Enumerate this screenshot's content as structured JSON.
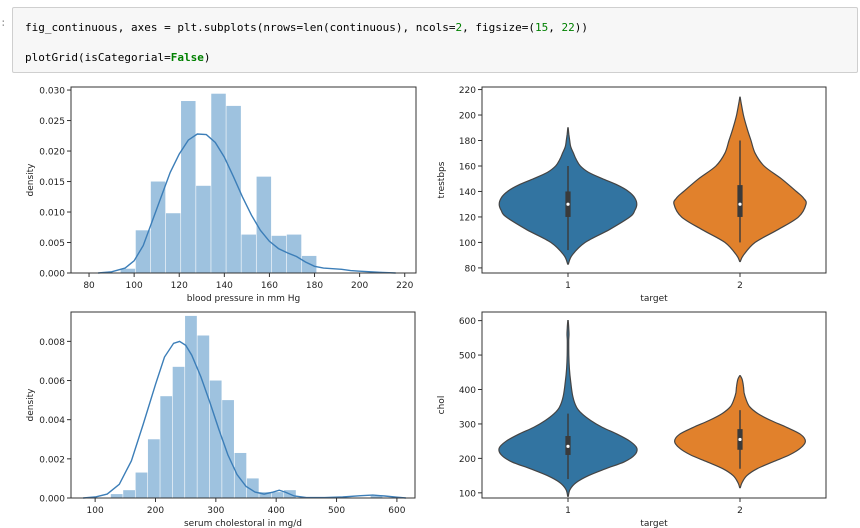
{
  "prompt_label": ":",
  "code": {
    "line1": {
      "part1": "fig_continuous, axes = plt.subplots(nrows=len(continuous), ncols=",
      "num1": "2",
      "part2": ", figsize=(",
      "num2": "15",
      "part3": ", ",
      "num3": "22",
      "part4": "))"
    },
    "line2": {
      "part1": "plotGrid(isCategorial=",
      "kw": "False",
      "part2": ")"
    }
  },
  "colors": {
    "hist_fill": "#9ec2df",
    "kde_line": "#3c7eb8",
    "violin_1": "#3274a1",
    "violin_2": "#e1812c",
    "violin_edge": "#444444"
  },
  "chart_data": [
    {
      "id": "bp-hist",
      "type": "bar",
      "xlabel": "blood pressure in mm Hg",
      "ylabel": "density",
      "xlim": [
        72,
        225
      ],
      "ylim": [
        0,
        0.0305
      ],
      "xticks": [
        80,
        100,
        120,
        140,
        160,
        180,
        200,
        220
      ],
      "yticks": [
        0.0,
        0.005,
        0.01,
        0.015,
        0.02,
        0.025,
        0.03
      ],
      "ytick_decimals": 3,
      "bin_edges": [
        94,
        100.7,
        107.4,
        114.1,
        120.8,
        127.5,
        134.2,
        140.9,
        147.6,
        154.3,
        161,
        167.7,
        174.4,
        181.1
      ],
      "bin_values": [
        0.0007,
        0.007,
        0.015,
        0.0098,
        0.0282,
        0.0143,
        0.0294,
        0.0274,
        0.0063,
        0.0158,
        0.0061,
        0.0063,
        0.0028
      ],
      "kde_x": [
        84,
        90,
        96,
        100,
        104,
        108,
        112,
        116,
        120,
        124,
        128,
        132,
        136,
        140,
        144,
        148,
        152,
        156,
        160,
        164,
        168,
        172,
        176,
        180,
        184,
        188,
        192,
        196,
        200,
        205,
        210,
        216
      ],
      "kde_y": [
        0,
        0.0002,
        0.0008,
        0.002,
        0.0045,
        0.0085,
        0.0125,
        0.0165,
        0.0195,
        0.0218,
        0.0228,
        0.0227,
        0.0214,
        0.019,
        0.0158,
        0.0125,
        0.0095,
        0.007,
        0.0052,
        0.004,
        0.0033,
        0.0027,
        0.0018,
        0.0011,
        0.0008,
        0.0007,
        0.0006,
        0.0004,
        0.0003,
        0.0002,
        0.0001,
        0
      ]
    },
    {
      "id": "bp-violin",
      "type": "violin",
      "xlabel": "target",
      "ylabel": "trestbps",
      "ylim": [
        76,
        222
      ],
      "yticks": [
        80,
        100,
        120,
        140,
        160,
        180,
        200,
        220
      ],
      "ytick_decimals": 0,
      "categories": [
        "1",
        "2"
      ],
      "violins": [
        {
          "category": "1",
          "profile_y": [
            83,
            90,
            100,
            110,
            120,
            125,
            130,
            135,
            140,
            145,
            150,
            155,
            160,
            165,
            170,
            175,
            180,
            185,
            190
          ],
          "profile_w": [
            0.005,
            0.06,
            0.25,
            0.6,
            0.9,
            0.97,
            1.0,
            0.97,
            0.88,
            0.72,
            0.5,
            0.3,
            0.18,
            0.12,
            0.08,
            0.04,
            0.025,
            0.012,
            0.003
          ],
          "q1": 120,
          "median": 130,
          "q3": 140,
          "whisker_low": 94,
          "whisker_high": 160
        },
        {
          "category": "2",
          "profile_y": [
            85,
            90,
            100,
            110,
            120,
            130,
            135,
            140,
            150,
            160,
            170,
            180,
            190,
            200,
            210,
            214
          ],
          "profile_w": [
            0.005,
            0.05,
            0.22,
            0.55,
            0.85,
            0.96,
            0.92,
            0.82,
            0.6,
            0.35,
            0.22,
            0.16,
            0.1,
            0.05,
            0.015,
            0.003
          ],
          "q1": 120,
          "median": 130,
          "q3": 145,
          "whisker_low": 100,
          "whisker_high": 180
        }
      ]
    },
    {
      "id": "chol-hist",
      "type": "bar",
      "xlabel": "serum cholestoral in mg/d",
      "ylabel": "density",
      "xlim": [
        60,
        630
      ],
      "ylim": [
        0,
        0.0095
      ],
      "xticks": [
        100,
        200,
        300,
        400,
        500,
        600
      ],
      "yticks": [
        0.0,
        0.002,
        0.004,
        0.006,
        0.008
      ],
      "ytick_decimals": 3,
      "bin_edges": [
        126,
        146.5,
        167,
        187.5,
        208,
        228.5,
        249,
        269.5,
        290,
        310.5,
        331,
        351.5,
        372,
        392.5,
        413,
        433.5,
        454,
        474.5,
        495,
        515.5,
        536,
        556.5,
        577
      ],
      "bin_values": [
        0.0002,
        0.0004,
        0.0013,
        0.003,
        0.0052,
        0.0067,
        0.0093,
        0.0083,
        0.006,
        0.005,
        0.0023,
        0.001,
        0.0003,
        0.0003,
        0.0004,
        0,
        0,
        0,
        0,
        0,
        0,
        0.0001
      ],
      "kde_x": [
        80,
        100,
        120,
        140,
        160,
        180,
        200,
        215,
        230,
        240,
        250,
        260,
        275,
        290,
        305,
        320,
        335,
        350,
        365,
        380,
        395,
        405,
        415,
        430,
        450,
        480,
        510,
        540,
        560,
        580,
        600,
        615
      ],
      "kde_y": [
        0,
        5e-05,
        0.0002,
        0.0007,
        0.0019,
        0.0038,
        0.0058,
        0.0072,
        0.0079,
        0.008,
        0.0078,
        0.0073,
        0.0062,
        0.0049,
        0.0035,
        0.0022,
        0.0012,
        0.0006,
        0.0003,
        0.0002,
        0.0003,
        0.0004,
        0.0003,
        0.0001,
        2e-05,
        2e-05,
        5e-05,
        0.00012,
        0.00015,
        0.0001,
        4e-05,
        0
      ]
    },
    {
      "id": "chol-violin",
      "type": "violin",
      "xlabel": "target",
      "ylabel": "chol",
      "ylim": [
        85,
        625
      ],
      "yticks": [
        100,
        200,
        300,
        400,
        500,
        600
      ],
      "ytick_decimals": 0,
      "categories": [
        "1",
        "2"
      ],
      "violins": [
        {
          "category": "1",
          "profile_y": [
            90,
            110,
            130,
            150,
            170,
            190,
            210,
            230,
            250,
            270,
            290,
            310,
            330,
            350,
            380,
            420,
            460,
            500,
            540,
            560,
            580,
            600
          ],
          "profile_w": [
            0.005,
            0.03,
            0.12,
            0.3,
            0.55,
            0.82,
            0.97,
            1.0,
            0.9,
            0.72,
            0.5,
            0.33,
            0.2,
            0.12,
            0.07,
            0.04,
            0.02,
            0.012,
            0.01,
            0.015,
            0.01,
            0.003
          ],
          "q1": 210,
          "median": 235,
          "q3": 265,
          "whisker_low": 140,
          "whisker_high": 330
        },
        {
          "category": "2",
          "profile_y": [
            115,
            130,
            150,
            170,
            190,
            210,
            230,
            250,
            270,
            290,
            310,
            330,
            350,
            370,
            390,
            410,
            430,
            440
          ],
          "profile_w": [
            0.005,
            0.03,
            0.1,
            0.25,
            0.48,
            0.72,
            0.88,
            0.95,
            0.88,
            0.68,
            0.45,
            0.26,
            0.14,
            0.09,
            0.06,
            0.05,
            0.03,
            0.005
          ],
          "q1": 225,
          "median": 255,
          "q3": 285,
          "whisker_low": 170,
          "whisker_high": 340
        }
      ]
    }
  ]
}
